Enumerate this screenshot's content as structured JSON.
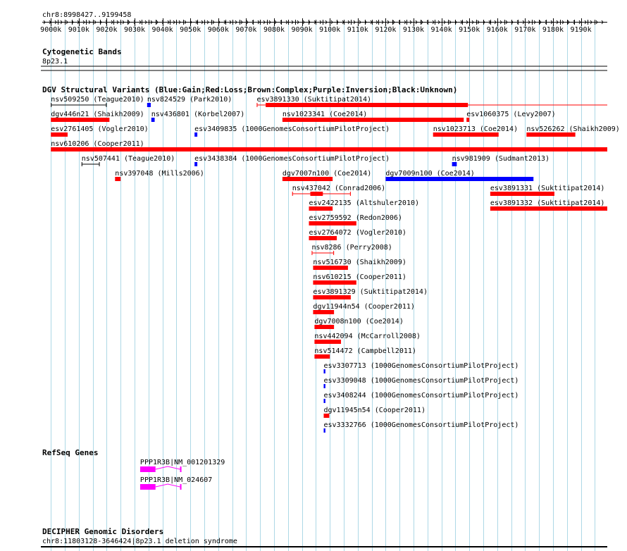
{
  "region": "chr8:8998427..9199458",
  "ruler": {
    "start": 8998427,
    "end": 9199458,
    "ticks": [
      "9000k",
      "9010k",
      "9020k",
      "9030k",
      "9040k",
      "9050k",
      "9060k",
      "9070k",
      "9080k",
      "9090k",
      "9100k",
      "9110k",
      "9120k",
      "9130k",
      "9140k",
      "9150k",
      "9160k",
      "9170k",
      "9180k",
      "9190k"
    ]
  },
  "colors": {
    "loss": "#ff0000",
    "gain": "#0000ff",
    "gene": "#ff00ff",
    "grid": "#add8e6",
    "unknown": "#000000"
  },
  "tracks": {
    "cytoband": {
      "title": "Cytogenetic Bands",
      "band": "8p23.1"
    },
    "dgv": {
      "title": "DGV Structural Variants (Blue:Gain;Red:Loss;Brown:Complex;Purple:Inversion;Black:Unknown)",
      "features": [
        {
          "label": "nsv509250 (Teague2010)",
          "type": "unknown",
          "start": 9000000,
          "end": 9020000,
          "style": "range",
          "row": 0
        },
        {
          "label": "nsv824529 (Park2010)",
          "type": "gain",
          "start": 9034500,
          "end": 9035800,
          "style": "block",
          "row": 0
        },
        {
          "label": "esv3891330 (Suktitipat2014)",
          "type": "loss",
          "start": 9073800,
          "end": 9199458,
          "style": "range-thick",
          "thickStart": 9077000,
          "thickEnd": 9149500,
          "row": 0
        },
        {
          "label": "dgv446n21 (Shaikh2009)",
          "type": "loss",
          "start": 9000000,
          "end": 9021000,
          "style": "block",
          "row": 1
        },
        {
          "label": "nsv436801 (Korbel2007)",
          "type": "gain",
          "start": 9036000,
          "end": 9037200,
          "style": "block",
          "row": 1
        },
        {
          "label": "nsv1023341 (Coe2014)",
          "type": "loss",
          "start": 9083000,
          "end": 9148000,
          "style": "block",
          "row": 1
        },
        {
          "label": "esv1060375 (Levy2007)",
          "type": "loss",
          "start": 9149000,
          "end": 9150000,
          "style": "block",
          "row": 1
        },
        {
          "label": "esv2761405 (Vogler2010)",
          "type": "loss",
          "start": 9000000,
          "end": 9006000,
          "style": "block",
          "row": 2
        },
        {
          "label": "esv3409835 (1000GenomesConsortiumPilotProject)",
          "type": "gain",
          "start": 9051500,
          "end": 9052500,
          "style": "block",
          "row": 2
        },
        {
          "label": "nsv1023713 (Coe2014)",
          "type": "loss",
          "start": 9137000,
          "end": 9160500,
          "style": "block",
          "row": 2
        },
        {
          "label": "nsv526262 (Shaikh2009)",
          "type": "loss",
          "start": 9170500,
          "end": 9188000,
          "style": "block",
          "row": 2
        },
        {
          "label": "nsv610206 (Cooper2011)",
          "type": "loss",
          "start": 9000000,
          "end": 9199458,
          "style": "block",
          "row": 3
        },
        {
          "label": "nsv507441 (Teague2010)",
          "type": "unknown",
          "start": 9011000,
          "end": 9017500,
          "style": "range",
          "row": 4
        },
        {
          "label": "esv3438384 (1000GenomesConsortiumPilotProject)",
          "type": "gain",
          "start": 9051500,
          "end": 9052500,
          "style": "block",
          "row": 4
        },
        {
          "label": "nsv981909 (Sudmant2013)",
          "type": "gain",
          "start": 9143800,
          "end": 9145500,
          "style": "block",
          "row": 4
        },
        {
          "label": "nsv397048 (Mills2006)",
          "type": "loss",
          "start": 9023000,
          "end": 9025000,
          "style": "block",
          "row": 5
        },
        {
          "label": "dgv7007n100 (Coe2014)",
          "type": "loss",
          "start": 9083000,
          "end": 9101000,
          "style": "block",
          "row": 5
        },
        {
          "label": "dgv7009n100 (Coe2014)",
          "type": "gain",
          "start": 9120000,
          "end": 9173000,
          "style": "block",
          "row": 5
        },
        {
          "label": "nsv437042 (Conrad2006)",
          "type": "loss",
          "start": 9086500,
          "end": 9107500,
          "style": "range-thick",
          "thickStart": 9093000,
          "thickEnd": 9097500,
          "row": 6
        },
        {
          "label": "esv3891331 (Suktitipat2014)",
          "type": "loss",
          "start": 9157500,
          "end": 9180500,
          "style": "block",
          "row": 6
        },
        {
          "label": "esv2422135 (Altshuler2010)",
          "type": "loss",
          "start": 9092500,
          "end": 9101000,
          "style": "block",
          "row": 7
        },
        {
          "label": "esv3891332 (Suktitipat2014)",
          "type": "loss",
          "start": 9157500,
          "end": 9199458,
          "style": "block",
          "row": 7
        },
        {
          "label": "esv2759592 (Redon2006)",
          "type": "loss",
          "start": 9092500,
          "end": 9109500,
          "style": "block",
          "row": 8
        },
        {
          "label": "esv2764072 (Vogler2010)",
          "type": "loss",
          "start": 9092500,
          "end": 9102500,
          "style": "block",
          "row": 9
        },
        {
          "label": "nsv8286 (Perry2008)",
          "type": "loss",
          "start": 9093500,
          "end": 9101500,
          "style": "range",
          "row": 10
        },
        {
          "label": "nsv516730 (Shaikh2009)",
          "type": "loss",
          "start": 9094000,
          "end": 9106500,
          "style": "block",
          "row": 11
        },
        {
          "label": "nsv610215 (Cooper2011)",
          "type": "loss",
          "start": 9094000,
          "end": 9109500,
          "style": "block",
          "row": 12
        },
        {
          "label": "esv3891329 (Suktitipat2014)",
          "type": "loss",
          "start": 9094000,
          "end": 9107500,
          "style": "block",
          "row": 13
        },
        {
          "label": "dgv11944n54 (Cooper2011)",
          "type": "loss",
          "start": 9094000,
          "end": 9101500,
          "style": "block",
          "row": 14
        },
        {
          "label": "dgv7008n100 (Coe2014)",
          "type": "loss",
          "start": 9094500,
          "end": 9101500,
          "style": "block",
          "row": 15
        },
        {
          "label": "nsv442094 (McCarroll2008)",
          "type": "loss",
          "start": 9094500,
          "end": 9104000,
          "style": "block",
          "row": 16
        },
        {
          "label": "nsv514472 (Campbell2011)",
          "type": "loss",
          "start": 9094500,
          "end": 9100000,
          "style": "block",
          "row": 17
        },
        {
          "label": "esv3307713 (1000GenomesConsortiumPilotProject)",
          "type": "gain",
          "start": 9097800,
          "end": 9098400,
          "style": "block",
          "row": 18
        },
        {
          "label": "esv3309048 (1000GenomesConsortiumPilotProject)",
          "type": "gain",
          "start": 9097800,
          "end": 9098400,
          "style": "block",
          "row": 19
        },
        {
          "label": "esv3408244 (1000GenomesConsortiumPilotProject)",
          "type": "gain",
          "start": 9097800,
          "end": 9098400,
          "style": "block",
          "row": 20
        },
        {
          "label": "dgv11945n54 (Cooper2011)",
          "type": "loss",
          "start": 9097800,
          "end": 9099800,
          "style": "block",
          "row": 21
        },
        {
          "label": "esv3332766 (1000GenomesConsortiumPilotProject)",
          "type": "gain",
          "start": 9097800,
          "end": 9098400,
          "style": "block",
          "row": 22
        }
      ]
    },
    "refseq": {
      "title": "RefSeq Genes",
      "genes": [
        {
          "label": "PPP1R3B|NM_001201329",
          "start": 9032000,
          "end": 9046800,
          "thickStart": 9032000,
          "thickEnd": 9037500,
          "exons": [
            [
              9032000,
              9037500
            ],
            [
              9046300,
              9046800
            ]
          ],
          "row": 0
        },
        {
          "label": "PPP1R3B|NM_024607",
          "start": 9032000,
          "end": 9046800,
          "thickStart": 9032000,
          "thickEnd": 9037500,
          "exons": [
            [
              9032000,
              9037500
            ],
            [
              9046300,
              9046800
            ]
          ],
          "row": 1
        }
      ]
    },
    "decipher": {
      "title": "DECIPHER Genomic Disorders",
      "label": "chr8:11803128-3646424|8p23.1 deletion syndrome"
    }
  }
}
